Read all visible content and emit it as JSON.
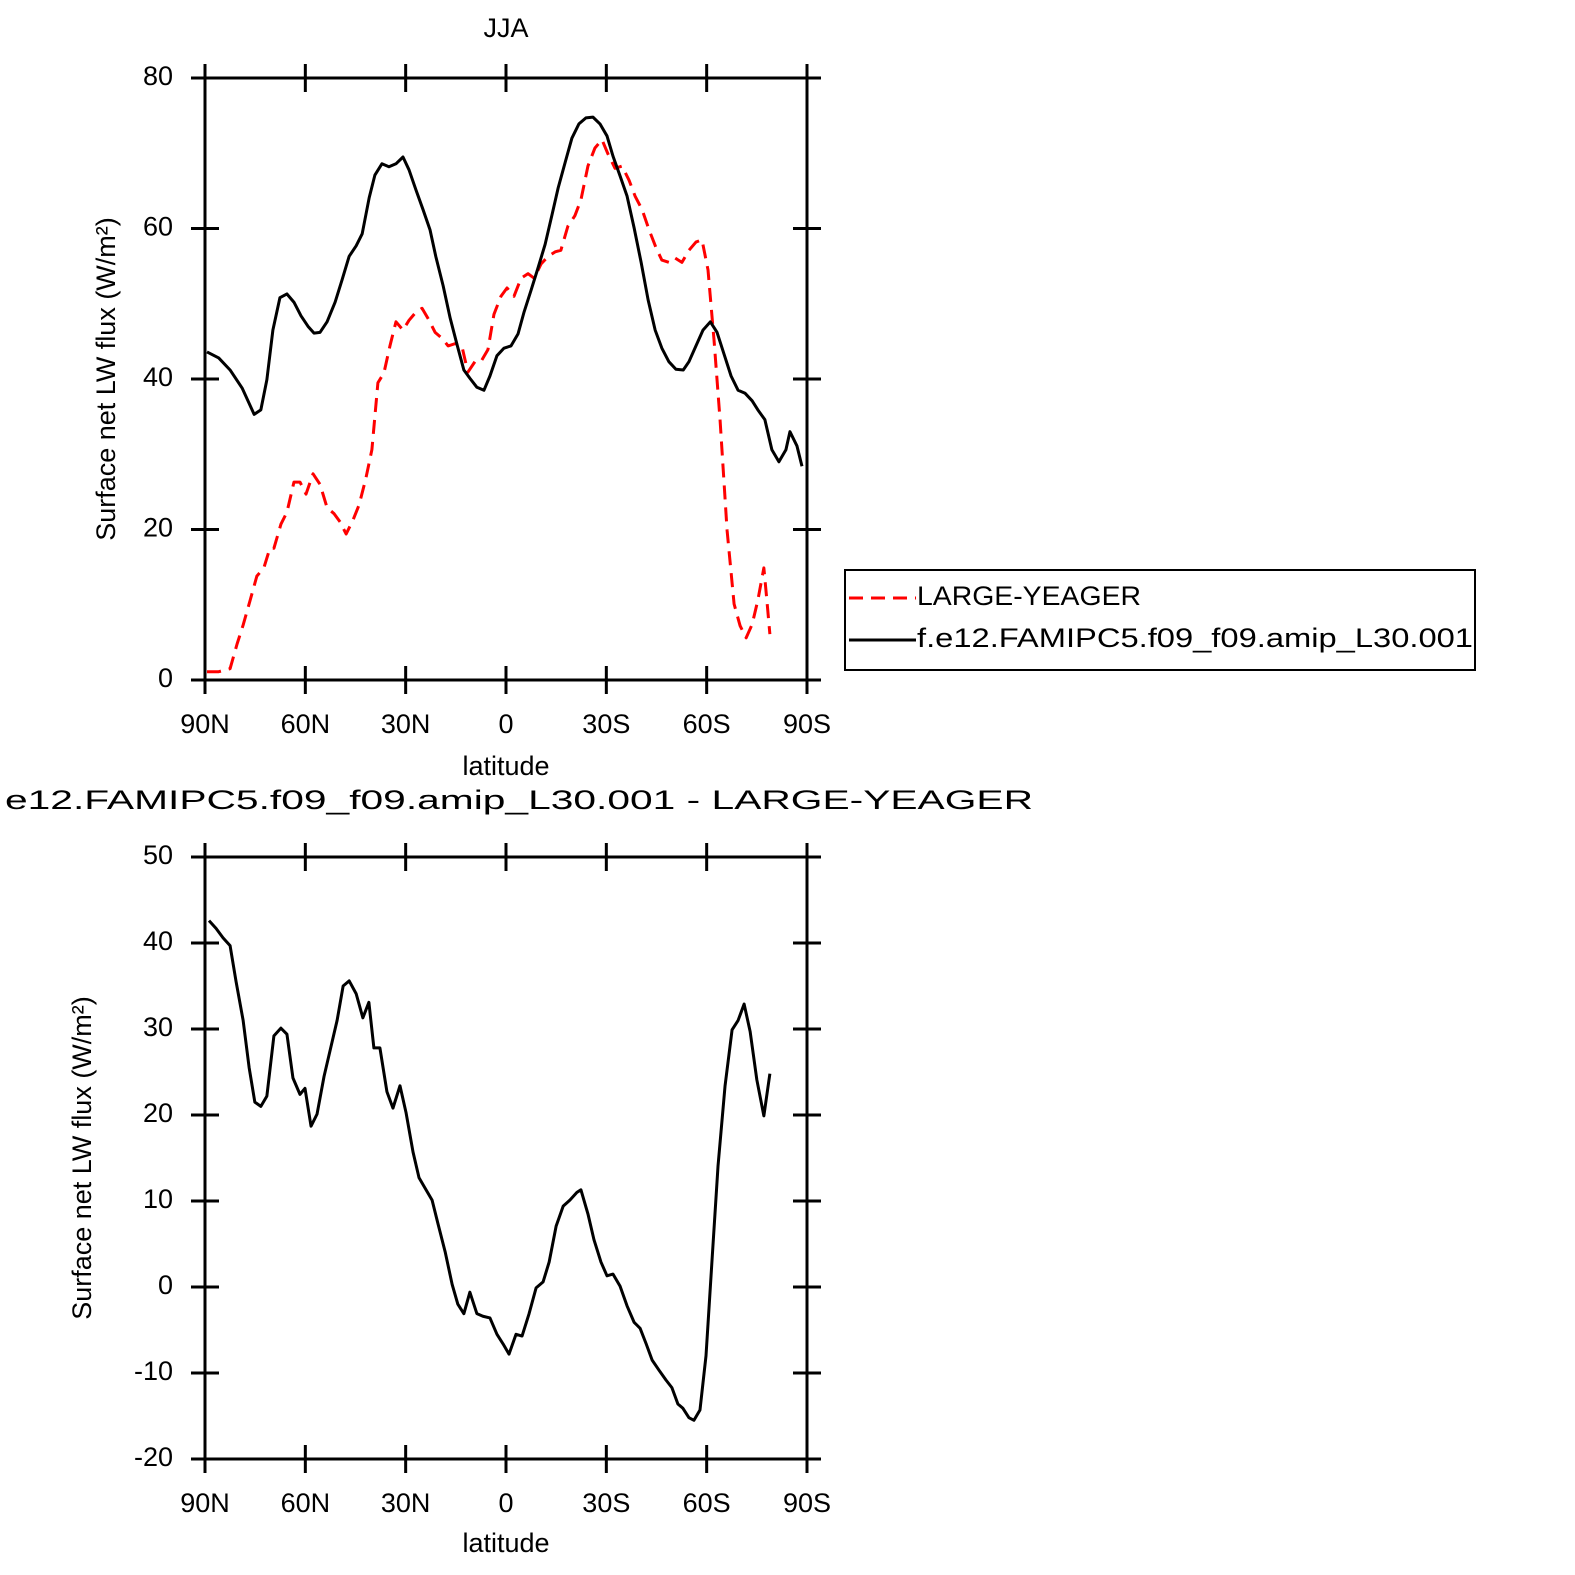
{
  "chart_data": [
    {
      "type": "line",
      "title": "JJA",
      "xlabel": "latitude",
      "ylabel": "Surface net LW flux (W/m²)",
      "xlim": [
        90,
        -90
      ],
      "xticks": [
        {
          "value": 90,
          "label": "90N"
        },
        {
          "value": 60,
          "label": "60N"
        },
        {
          "value": 30,
          "label": "30N"
        },
        0,
        {
          "value": -30,
          "label": "30S"
        },
        {
          "value": -60,
          "label": "60S"
        },
        {
          "value": -90,
          "label": "90S"
        }
      ],
      "ylim": [
        0,
        80
      ],
      "yticks": [
        0,
        20,
        40,
        60,
        80
      ],
      "legend": "right",
      "series": [
        {
          "name": "LARGE-YEAGER",
          "color": "#ff0000",
          "style": "dashed",
          "x": [
            89.4,
            85.9,
            82.5,
            80.4,
            78.6,
            76.5,
            74.5,
            72.4,
            70.6,
            69.4,
            67.3,
            65.5,
            63.4,
            61.6,
            59.8,
            57.7,
            55.6,
            53.5,
            51.4,
            49.6,
            47.8,
            45.7,
            43.9,
            41.9,
            40.1,
            38.3,
            36.5,
            34.7,
            32.9,
            30.8,
            29.0,
            26.9,
            25.1,
            23.0,
            21.2,
            19.1,
            17.3,
            15.2,
            13.2,
            11.4,
            9.3,
            7.5,
            5.4,
            3.6,
            1.5,
            -0.3,
            -2.4,
            -4.5,
            -6.6,
            -8.4,
            -10.5,
            -12.6,
            -14.7,
            -16.4,
            -18.5,
            -20.6,
            -22.4,
            -24.5,
            -26.6,
            -28.7,
            -30.5,
            -32.6,
            -34.7,
            -36.8,
            -38.6,
            -40.7,
            -42.8,
            -44.9,
            -46.6,
            -48.7,
            -50.5,
            -52.6,
            -54.7,
            -56.8,
            -58.6,
            -60.4,
            -62.2,
            -64.0,
            -66.1,
            -68.2,
            -70.0,
            -71.8,
            -73.6,
            -75.3,
            -77.1,
            -78.0,
            -78.9
          ],
          "values": [
            1.1,
            1.1,
            1.5,
            4.8,
            7.3,
            10.6,
            13.8,
            14.9,
            17.5,
            17.5,
            20.7,
            22.3,
            26.3,
            26.3,
            24.7,
            27.4,
            26.0,
            22.9,
            22.1,
            21.0,
            19.4,
            21.3,
            23.3,
            26.8,
            30.6,
            39.5,
            40.8,
            44.4,
            47.6,
            46.5,
            47.8,
            48.9,
            49.4,
            47.8,
            46.2,
            45.4,
            44.4,
            44.7,
            44.4,
            40.9,
            42.3,
            42.3,
            43.9,
            48.6,
            51.0,
            52.1,
            51.0,
            53.4,
            54.0,
            53.4,
            55.3,
            56.3,
            56.9,
            57.1,
            60.3,
            61.7,
            63.8,
            68.3,
            70.7,
            71.8,
            69.9,
            68.0,
            68.3,
            66.4,
            64.3,
            62.5,
            59.8,
            57.4,
            55.8,
            55.5,
            56.1,
            55.5,
            57.1,
            58.2,
            58.5,
            54.5,
            45.2,
            34.6,
            19.9,
            10.1,
            7.2,
            5.6,
            7.4,
            10.6,
            14.9,
            10.6,
            6.1
          ]
        },
        {
          "name": "f.e12.FAMIPC5.f09_f09.amip_L30.001",
          "color": "#000000",
          "style": "solid",
          "x": [
            89.4,
            85.9,
            82.5,
            78.9,
            75.3,
            73.3,
            71.5,
            69.7,
            67.6,
            65.5,
            63.4,
            61.3,
            59.2,
            57.4,
            55.6,
            53.5,
            51.1,
            49.0,
            46.9,
            44.8,
            43.0,
            40.9,
            39.2,
            37.1,
            35.0,
            32.9,
            30.8,
            29.0,
            26.9,
            24.8,
            22.7,
            21.0,
            18.8,
            16.7,
            14.6,
            12.6,
            10.8,
            8.7,
            6.6,
            4.8,
            2.7,
            0.6,
            -1.5,
            -3.6,
            -5.4,
            -7.5,
            -9.6,
            -11.7,
            -13.8,
            -15.6,
            -17.7,
            -19.7,
            -21.8,
            -23.9,
            -26.0,
            -28.1,
            -30.2,
            -32.0,
            -34.1,
            -36.2,
            -38.3,
            -40.4,
            -42.5,
            -44.6,
            -46.6,
            -48.7,
            -50.8,
            -53.0,
            -54.7,
            -56.8,
            -58.9,
            -61.1,
            -63.1,
            -65.2,
            -67.3,
            -69.4,
            -71.5,
            -73.6,
            -75.3,
            -77.4,
            -79.5,
            -81.6,
            -83.7,
            -84.9,
            -87.0,
            -88.5
          ],
          "values": [
            43.6,
            42.8,
            41.2,
            38.8,
            35.3,
            35.9,
            39.9,
            46.5,
            50.8,
            51.3,
            50.2,
            48.4,
            47.0,
            46.1,
            46.2,
            47.6,
            50.2,
            53.2,
            56.3,
            57.7,
            59.3,
            64.1,
            67.1,
            68.6,
            68.2,
            68.6,
            69.5,
            67.8,
            65.1,
            62.5,
            59.8,
            56.3,
            52.4,
            48.1,
            44.5,
            41.2,
            40.1,
            38.9,
            38.5,
            40.4,
            43.1,
            44.1,
            44.4,
            46.0,
            48.9,
            51.8,
            54.8,
            57.9,
            61.9,
            65.4,
            68.8,
            72.0,
            73.9,
            74.7,
            74.8,
            73.9,
            72.3,
            69.6,
            67.0,
            64.3,
            60.1,
            55.5,
            50.5,
            46.5,
            44.1,
            42.3,
            41.3,
            41.2,
            42.3,
            44.4,
            46.5,
            47.6,
            46.2,
            43.3,
            40.4,
            38.5,
            38.1,
            37.1,
            35.9,
            34.6,
            30.6,
            29.0,
            30.6,
            33.0,
            31.1,
            28.4
          ]
        }
      ]
    },
    {
      "type": "line",
      "title": "e12.FAMIPC5.f09_f09.amip_L30.001 - LARGE-YEAGER",
      "xlabel": "latitude",
      "ylabel": "Surface net LW flux (W/m²)",
      "xlim": [
        90,
        -90
      ],
      "xticks": [
        {
          "value": 90,
          "label": "90N"
        },
        {
          "value": 60,
          "label": "60N"
        },
        {
          "value": 30,
          "label": "30N"
        },
        0,
        {
          "value": -30,
          "label": "30S"
        },
        {
          "value": -60,
          "label": "60S"
        },
        {
          "value": -90,
          "label": "90S"
        }
      ],
      "ylim": [
        -20,
        50
      ],
      "yticks": [
        -20,
        -10,
        0,
        10,
        20,
        30,
        40,
        50
      ],
      "series": [
        {
          "color": "#000000",
          "style": "solid",
          "x": [
            88.8,
            86.7,
            84.6,
            82.5,
            80.7,
            78.6,
            76.8,
            75.1,
            73.3,
            71.5,
            69.4,
            67.3,
            65.5,
            63.7,
            61.6,
            60.1,
            58.3,
            56.5,
            54.4,
            52.3,
            50.5,
            48.7,
            46.9,
            44.8,
            42.8,
            41.0,
            39.5,
            37.7,
            35.6,
            33.8,
            31.7,
            29.9,
            27.8,
            26.0,
            24.2,
            22.1,
            20.3,
            18.2,
            16.1,
            14.4,
            12.6,
            10.8,
            8.7,
            6.9,
            4.8,
            2.7,
            0.9,
            -0.9,
            -3.0,
            -4.8,
            -6.9,
            -9.0,
            -11.1,
            -12.9,
            -15.0,
            -17.1,
            -19.1,
            -21.2,
            -22.4,
            -24.5,
            -26.3,
            -28.4,
            -30.2,
            -32.0,
            -34.1,
            -36.2,
            -38.3,
            -40.1,
            -41.9,
            -43.7,
            -45.8,
            -47.8,
            -49.6,
            -51.4,
            -52.9,
            -54.7,
            -56.2,
            -58.0,
            -59.8,
            -61.6,
            -63.4,
            -65.5,
            -67.6,
            -69.4,
            -71.2,
            -73.0,
            -75.0,
            -77.1,
            -78.9
          ],
          "values": [
            42.6,
            41.7,
            40.6,
            39.7,
            35.5,
            31.0,
            25.5,
            21.5,
            21.0,
            22.2,
            29.2,
            30.1,
            29.4,
            24.3,
            22.4,
            23.1,
            18.7,
            20.1,
            24.5,
            28.0,
            31.0,
            35.0,
            35.6,
            34.1,
            31.3,
            33.1,
            27.8,
            27.8,
            22.7,
            20.8,
            23.4,
            20.3,
            15.7,
            12.7,
            11.5,
            10.1,
            7.3,
            4.1,
            0.3,
            -2.0,
            -3.1,
            -0.6,
            -3.1,
            -3.4,
            -3.6,
            -5.5,
            -6.6,
            -7.8,
            -5.5,
            -5.7,
            -3.1,
            -0.1,
            0.6,
            2.9,
            7.1,
            9.4,
            10.1,
            11.0,
            11.3,
            8.5,
            5.5,
            2.9,
            1.3,
            1.5,
            0.1,
            -2.2,
            -4.1,
            -4.8,
            -6.6,
            -8.5,
            -9.7,
            -10.8,
            -11.7,
            -13.6,
            -14.1,
            -15.2,
            -15.5,
            -14.3,
            -8.0,
            3.1,
            14.1,
            23.4,
            29.9,
            31.0,
            32.9,
            29.7,
            24.1,
            19.9,
            24.8
          ]
        }
      ]
    }
  ]
}
